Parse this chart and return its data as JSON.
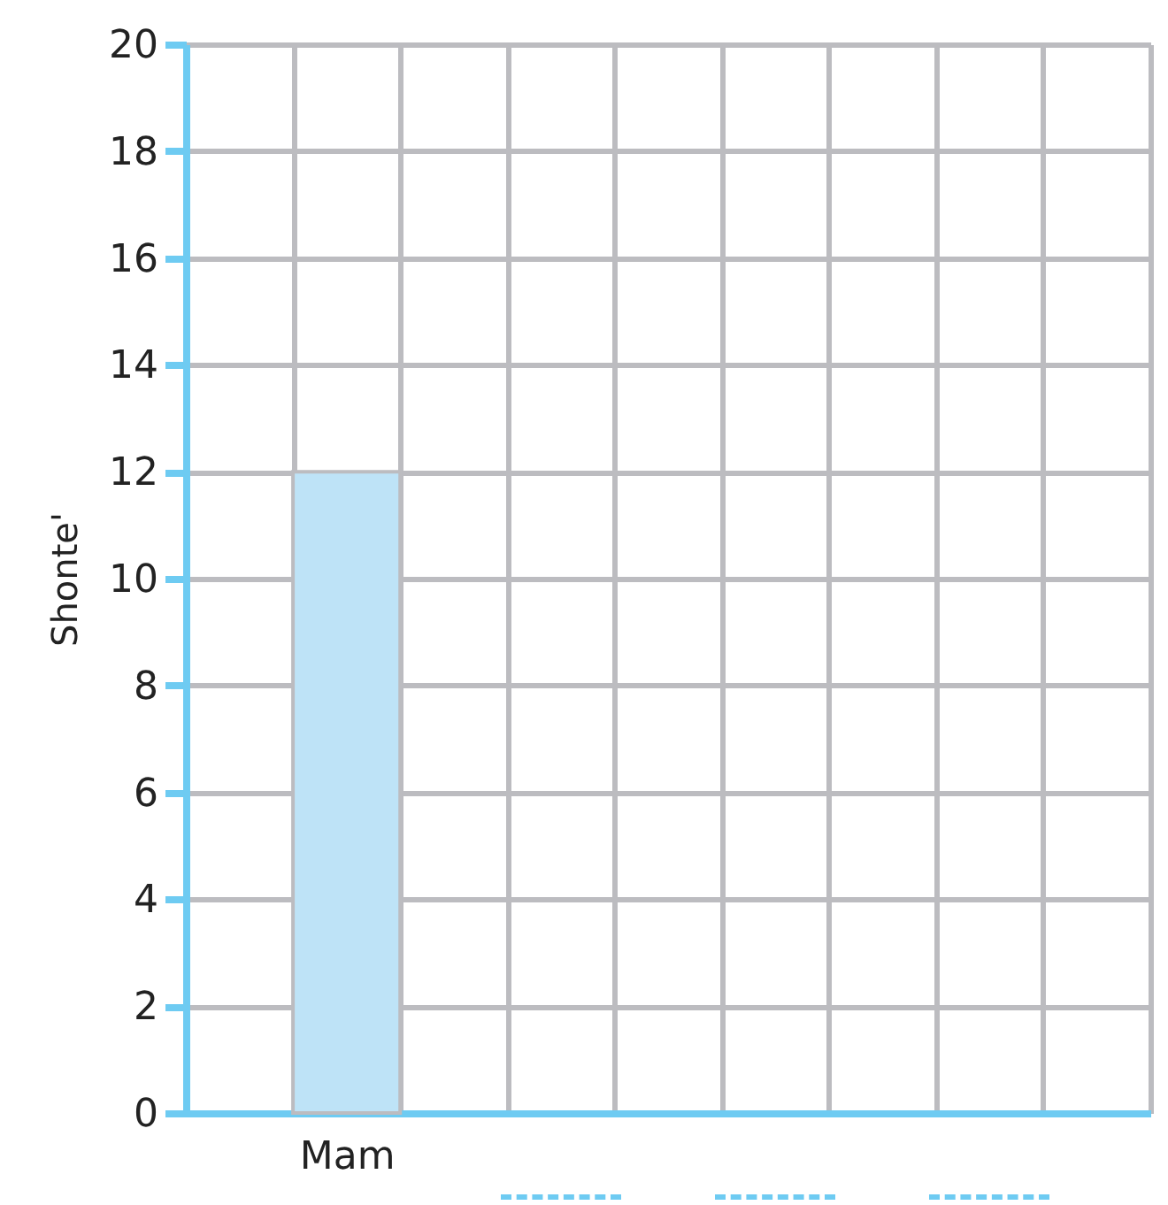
{
  "chart_data": {
    "type": "bar",
    "ylabel": "Shonte'",
    "categories": [
      null,
      "Mam",
      null,
      null,
      null,
      null,
      null,
      null,
      null
    ],
    "values": [
      null,
      12,
      null,
      null,
      null,
      null,
      null,
      null,
      null
    ],
    "color": "#bee3f7",
    "ylim": [
      0,
      20
    ],
    "yticks": [
      0,
      2,
      4,
      6,
      8,
      10,
      12,
      14,
      16,
      18,
      20
    ],
    "grid": true
  }
}
